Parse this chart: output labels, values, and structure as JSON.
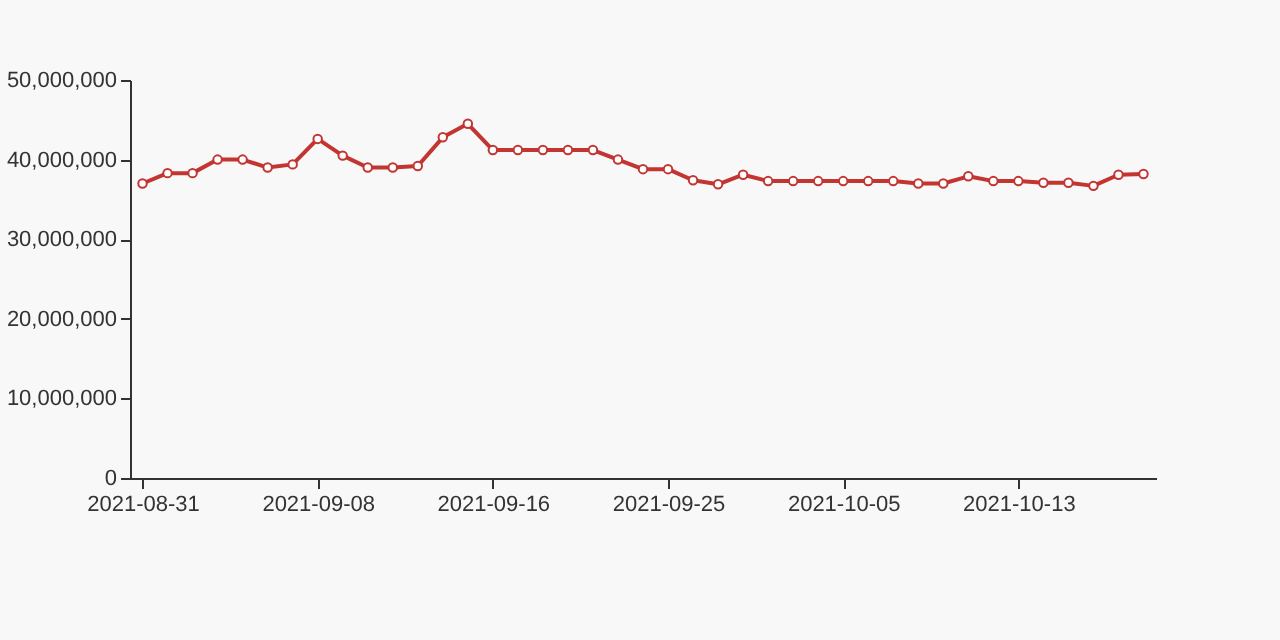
{
  "chart_data": {
    "type": "line",
    "categories": [
      "2021-08-31",
      null,
      null,
      null,
      null,
      null,
      null,
      "2021-09-08",
      null,
      null,
      null,
      null,
      null,
      null,
      "2021-09-16",
      null,
      null,
      null,
      null,
      null,
      null,
      "2021-09-25",
      null,
      null,
      null,
      null,
      null,
      null,
      "2021-10-05",
      null,
      null,
      null,
      null,
      null,
      null,
      "2021-10-13",
      null,
      null,
      null,
      null,
      null
    ],
    "series": [
      {
        "color": "#c23531",
        "values": [
          37000000,
          38300000,
          38300000,
          40000000,
          40000000,
          39000000,
          39400000,
          42600000,
          40500000,
          39000000,
          39000000,
          39200000,
          42800000,
          44500000,
          41200000,
          41200000,
          41200000,
          41200000,
          41200000,
          40000000,
          38800000,
          38800000,
          37400000,
          36900000,
          38100000,
          37300000,
          37300000,
          37300000,
          37300000,
          37300000,
          37300000,
          37000000,
          37000000,
          37900000,
          37300000,
          37300000,
          37100000,
          37100000,
          36700000,
          38100000,
          38200000
        ]
      }
    ],
    "ylim": [
      0,
      50000000
    ],
    "yticks": [
      0,
      {
        "value": 10000000,
        "label": "10,000,000"
      },
      {
        "value": 20000000,
        "label": "20,000,000"
      },
      {
        "value": 30000000,
        "label": "30,000,000"
      },
      {
        "value": 40000000,
        "label": "40,000,000"
      },
      {
        "value": 50000000,
        "label": "50,000,000"
      }
    ],
    "grid": false,
    "marker": "circle",
    "line_style": "solid"
  }
}
